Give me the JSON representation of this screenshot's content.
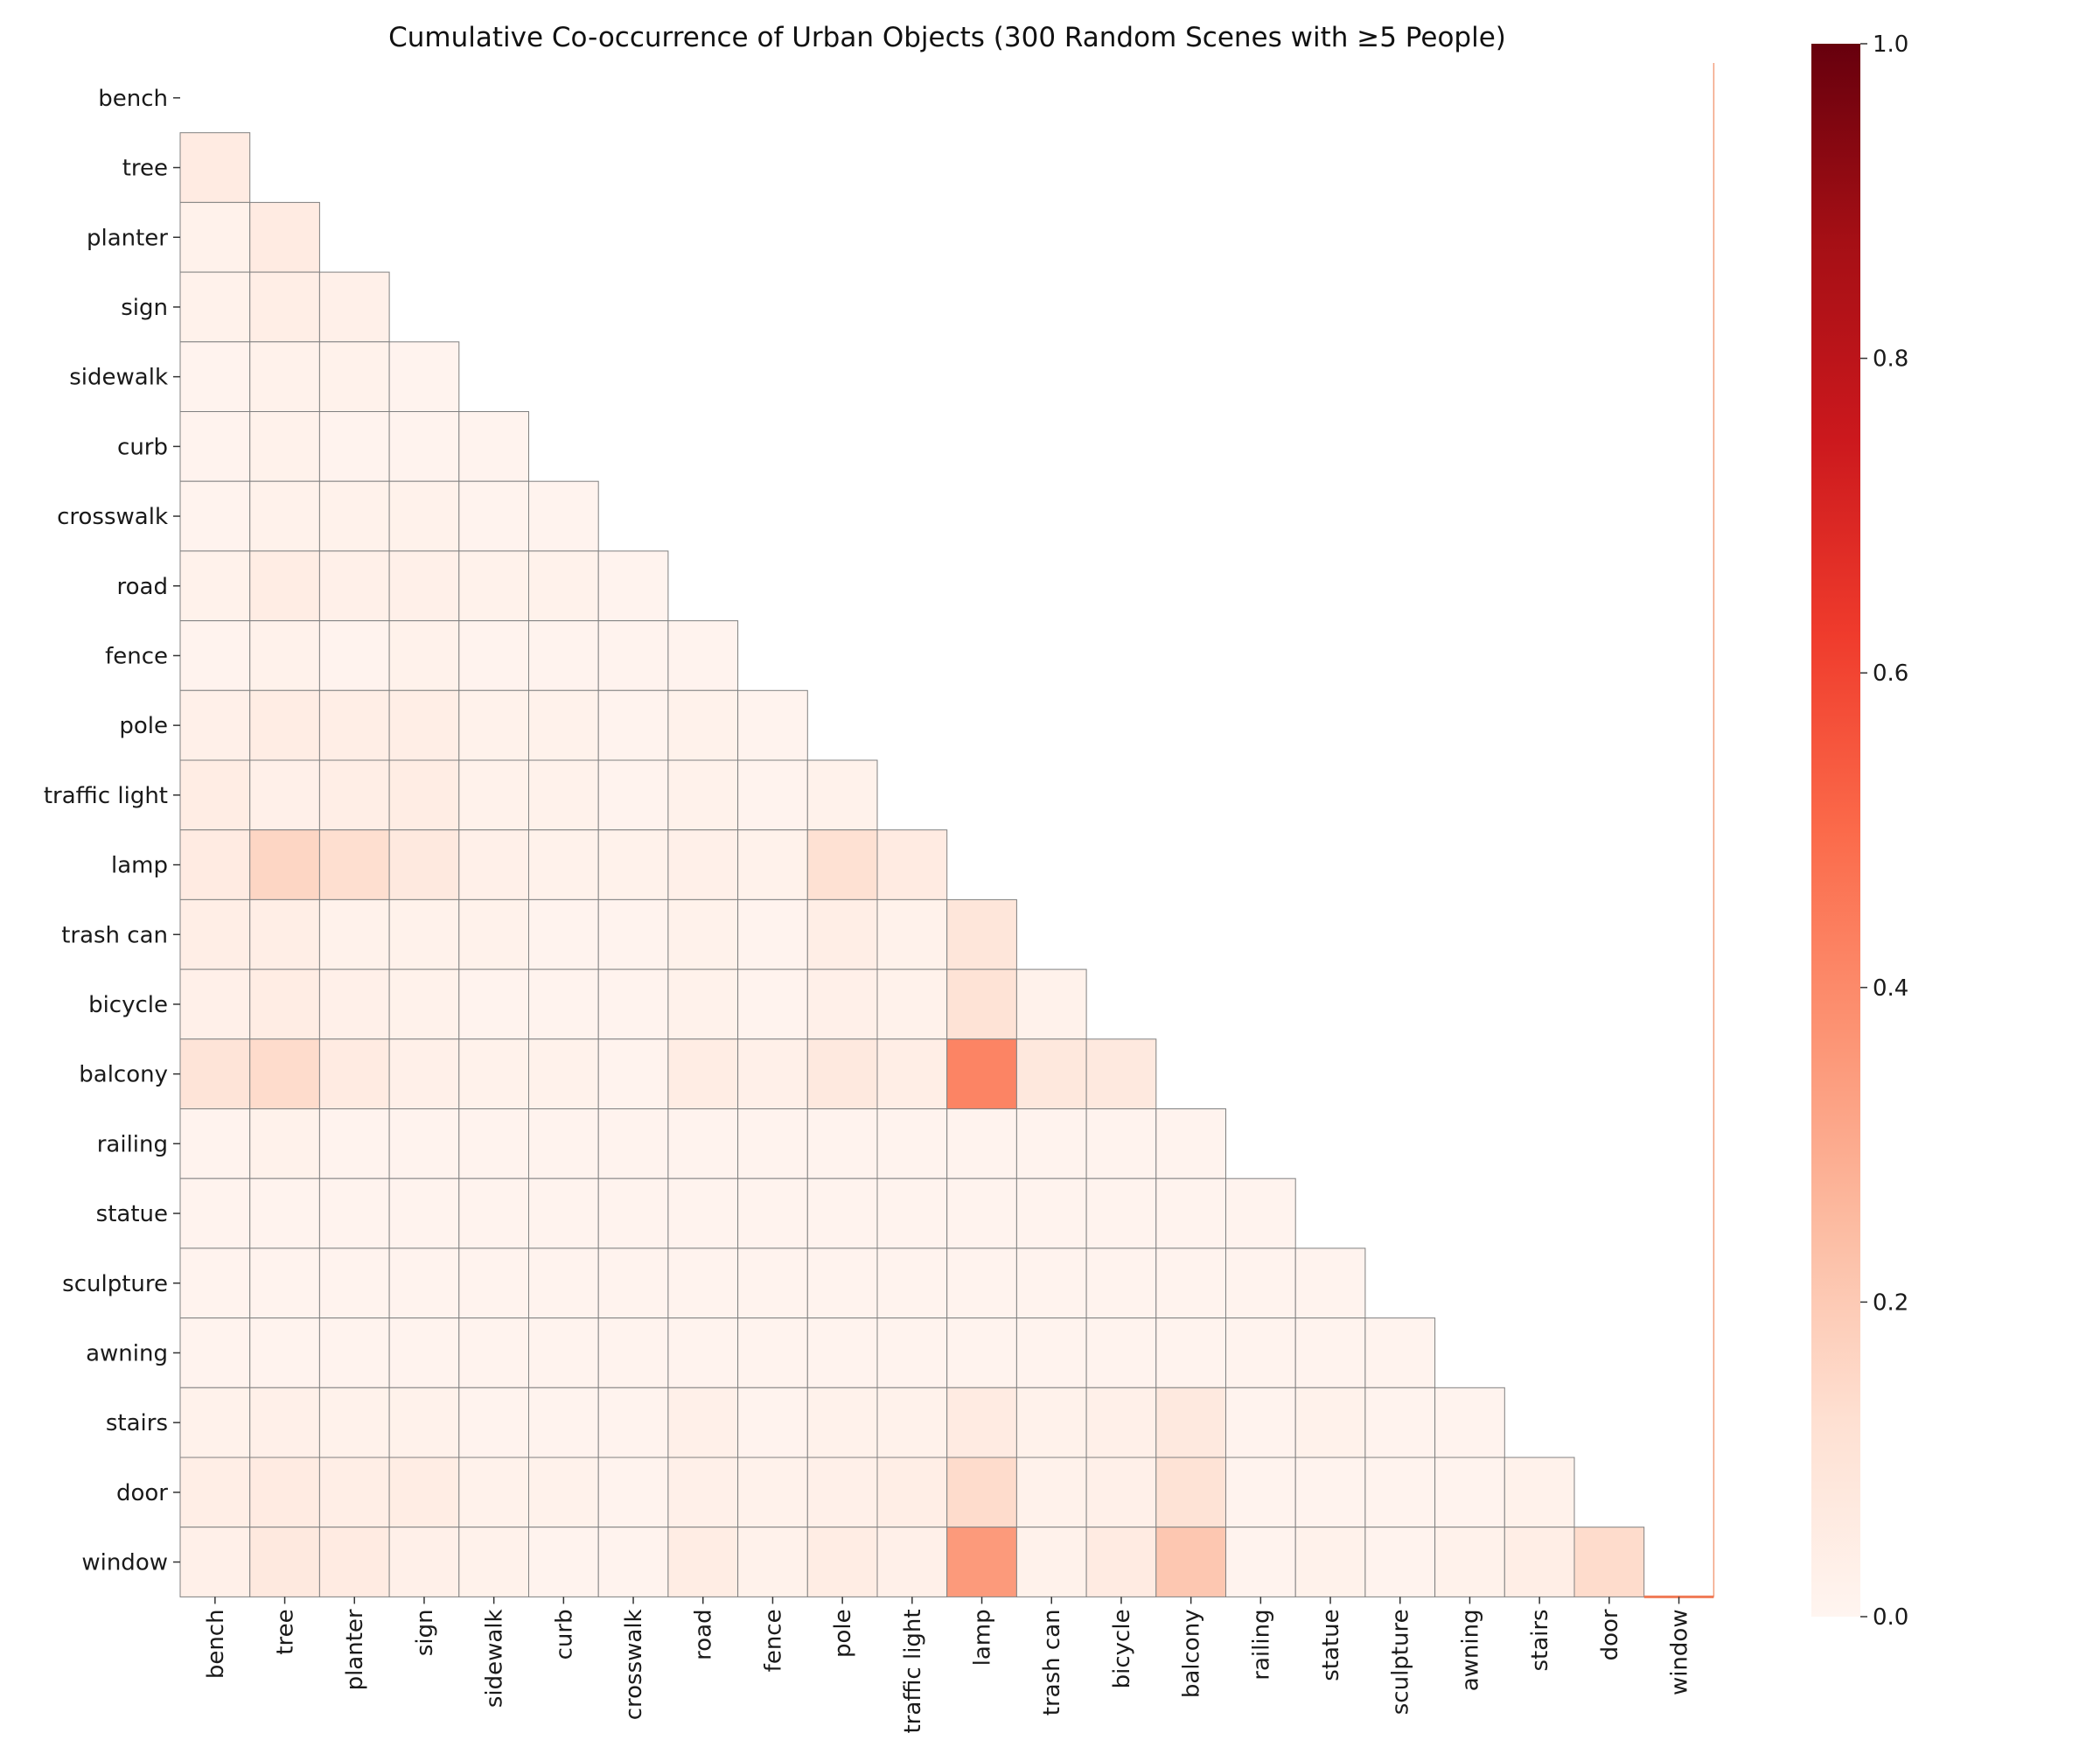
{
  "chart_data": {
    "type": "heatmap",
    "title": "Cumulative Co-occurrence of Urban Objects (300 Random Scenes with ≥5 People)",
    "xlabel": "",
    "ylabel": "",
    "mask": "upper triangle incl. diagonal",
    "colormap": "Reds",
    "colors": {
      "low": "#fff5f0",
      "high": "#67000d",
      "cell_border": "#808080"
    },
    "colorbar": {
      "min": 0.0,
      "max": 1.0,
      "ticks": [
        0.0,
        0.2,
        0.4,
        0.6,
        0.8,
        1.0
      ],
      "tick_labels": [
        "0.0",
        "0.2",
        "0.4",
        "0.6",
        "0.8",
        "1.0"
      ]
    },
    "labels": [
      "bench",
      "tree",
      "planter",
      "sign",
      "sidewalk",
      "curb",
      "crosswalk",
      "road",
      "fence",
      "pole",
      "traffic light",
      "lamp",
      "trash can",
      "bicycle",
      "balcony",
      "railing",
      "statue",
      "sculpture",
      "awning",
      "stairs",
      "door",
      "window"
    ],
    "rows": [
      [],
      [
        0.06
      ],
      [
        0.02,
        0.06
      ],
      [
        0.02,
        0.04,
        0.03
      ],
      [
        0.01,
        0.02,
        0.02,
        0.01
      ],
      [
        0.01,
        0.02,
        0.01,
        0.01,
        0.01
      ],
      [
        0.01,
        0.02,
        0.02,
        0.02,
        0.01,
        0.01
      ],
      [
        0.02,
        0.05,
        0.03,
        0.03,
        0.02,
        0.02,
        0.01
      ],
      [
        0.01,
        0.02,
        0.01,
        0.02,
        0.01,
        0.01,
        0.01,
        0.01
      ],
      [
        0.03,
        0.05,
        0.04,
        0.04,
        0.02,
        0.02,
        0.01,
        0.02,
        0.01
      ],
      [
        0.05,
        0.03,
        0.04,
        0.05,
        0.02,
        0.02,
        0.01,
        0.02,
        0.01,
        0.02
      ],
      [
        0.06,
        0.16,
        0.13,
        0.07,
        0.03,
        0.02,
        0.02,
        0.03,
        0.02,
        0.12,
        0.06
      ],
      [
        0.04,
        0.04,
        0.02,
        0.02,
        0.02,
        0.01,
        0.01,
        0.02,
        0.01,
        0.04,
        0.02,
        0.09
      ],
      [
        0.03,
        0.05,
        0.03,
        0.02,
        0.01,
        0.01,
        0.01,
        0.02,
        0.01,
        0.03,
        0.02,
        0.11,
        0.02
      ],
      [
        0.1,
        0.14,
        0.06,
        0.03,
        0.02,
        0.02,
        0.01,
        0.05,
        0.03,
        0.07,
        0.04,
        0.42,
        0.08,
        0.07
      ],
      [
        0.01,
        0.02,
        0.01,
        0.01,
        0.01,
        0.01,
        0.01,
        0.01,
        0.01,
        0.01,
        0.01,
        0.01,
        0.01,
        0.01,
        0.01
      ],
      [
        0.01,
        0.01,
        0.01,
        0.01,
        0.01,
        0.01,
        0.01,
        0.01,
        0.01,
        0.01,
        0.01,
        0.01,
        0.01,
        0.01,
        0.01,
        0.01
      ],
      [
        0.01,
        0.01,
        0.01,
        0.01,
        0.01,
        0.01,
        0.01,
        0.01,
        0.01,
        0.01,
        0.01,
        0.01,
        0.01,
        0.01,
        0.01,
        0.01,
        0.01
      ],
      [
        0.01,
        0.01,
        0.01,
        0.01,
        0.01,
        0.01,
        0.01,
        0.01,
        0.01,
        0.01,
        0.01,
        0.01,
        0.01,
        0.01,
        0.01,
        0.01,
        0.01,
        0.01
      ],
      [
        0.02,
        0.03,
        0.02,
        0.02,
        0.01,
        0.01,
        0.01,
        0.03,
        0.01,
        0.02,
        0.02,
        0.06,
        0.02,
        0.03,
        0.07,
        0.01,
        0.02,
        0.01,
        0.01
      ],
      [
        0.04,
        0.06,
        0.04,
        0.05,
        0.02,
        0.02,
        0.01,
        0.03,
        0.02,
        0.03,
        0.04,
        0.14,
        0.02,
        0.03,
        0.11,
        0.01,
        0.01,
        0.01,
        0.01,
        0.02
      ],
      [
        0.03,
        0.07,
        0.06,
        0.03,
        0.02,
        0.01,
        0.01,
        0.05,
        0.02,
        0.05,
        0.03,
        0.35,
        0.02,
        0.06,
        0.21,
        0.01,
        0.02,
        0.01,
        0.02,
        0.04,
        0.14
      ]
    ]
  }
}
